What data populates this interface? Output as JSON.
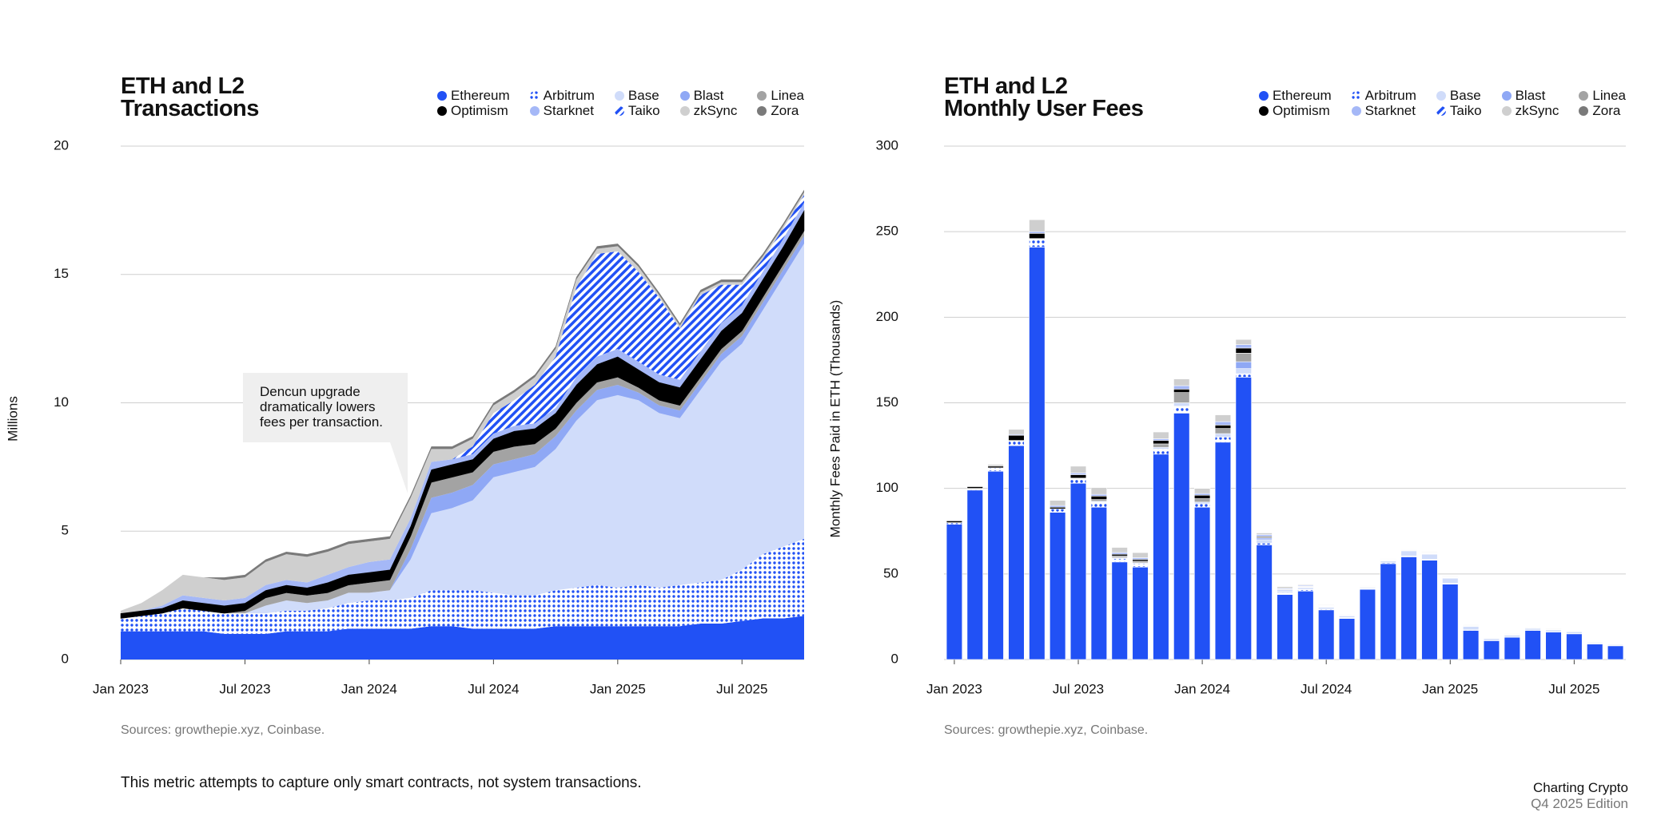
{
  "chart_data": [
    {
      "type": "area",
      "title": "ETH and L2\nTransactions",
      "y_label": "Millions",
      "annotation": "Dencun upgrade dramatically lowers fees per transaction.",
      "source": "Sources: growthepie.xyz, Coinbase.",
      "xlim": [
        "2023-01",
        "2025-10"
      ],
      "x": [
        "2023-01",
        "2023-02",
        "2023-03",
        "2023-04",
        "2023-05",
        "2023-06",
        "2023-07",
        "2023-08",
        "2023-09",
        "2023-10",
        "2023-11",
        "2023-12",
        "2024-01",
        "2024-02",
        "2024-03",
        "2024-04",
        "2024-05",
        "2024-06",
        "2024-07",
        "2024-08",
        "2024-09",
        "2024-10",
        "2024-11",
        "2024-12",
        "2025-01",
        "2025-02",
        "2025-03",
        "2025-04",
        "2025-05",
        "2025-06",
        "2025-07",
        "2025-08",
        "2025-09",
        "2025-10"
      ],
      "xticks": [
        {
          "value": "2023-01",
          "label": "Jan 2023"
        },
        {
          "value": "2023-07",
          "label": "Jul 2023"
        },
        {
          "value": "2024-01",
          "label": "Jan 2024"
        },
        {
          "value": "2024-07",
          "label": "Jul 2024"
        },
        {
          "value": "2025-01",
          "label": "Jan 2025"
        },
        {
          "value": "2025-07",
          "label": "Jul 2025"
        }
      ],
      "ylim": [
        0,
        20
      ],
      "yticks": [
        0,
        5,
        10,
        15,
        20
      ],
      "grid": true,
      "legend": "top-right",
      "series": [
        {
          "name": "Ethereum",
          "color": "#2151f5",
          "values": [
            1.1,
            1.1,
            1.1,
            1.1,
            1.1,
            1.0,
            1.0,
            1.0,
            1.1,
            1.1,
            1.1,
            1.2,
            1.2,
            1.2,
            1.2,
            1.3,
            1.3,
            1.2,
            1.2,
            1.2,
            1.2,
            1.3,
            1.3,
            1.3,
            1.3,
            1.3,
            1.3,
            1.3,
            1.4,
            1.4,
            1.5,
            1.6,
            1.6,
            1.7
          ]
        },
        {
          "name": "Arbitrum",
          "color": "#2151f5",
          "pattern": "dots",
          "values": [
            0.5,
            0.6,
            0.7,
            0.9,
            0.8,
            0.8,
            0.8,
            0.8,
            0.8,
            0.8,
            0.9,
            1.0,
            1.1,
            1.1,
            1.2,
            1.4,
            1.4,
            1.5,
            1.4,
            1.3,
            1.3,
            1.4,
            1.5,
            1.6,
            1.5,
            1.6,
            1.5,
            1.6,
            1.6,
            1.7,
            2.0,
            2.5,
            2.8,
            3.0
          ]
        },
        {
          "name": "Base",
          "color": "#d0dcfa",
          "values": [
            0,
            0,
            0,
            0,
            0,
            0,
            0,
            0.3,
            0.4,
            0.3,
            0.3,
            0.4,
            0.3,
            0.4,
            1.5,
            3.0,
            3.2,
            3.5,
            4.5,
            4.8,
            5.0,
            5.5,
            6.5,
            7.2,
            7.5,
            7.2,
            6.8,
            6.5,
            7.5,
            8.5,
            8.8,
            9.5,
            10.5,
            11.5
          ]
        },
        {
          "name": "Blast",
          "color": "#8fa8f5",
          "values": [
            0,
            0,
            0,
            0,
            0,
            0,
            0,
            0,
            0,
            0,
            0,
            0,
            0,
            0,
            0.4,
            0.6,
            0.6,
            0.6,
            0.5,
            0.5,
            0.5,
            0.5,
            0.4,
            0.4,
            0.4,
            0.3,
            0.3,
            0.3,
            0.3,
            0.3,
            0.3,
            0.3,
            0.3,
            0.3
          ]
        },
        {
          "name": "Linea",
          "color": "#a3a3a3",
          "values": [
            0,
            0,
            0,
            0,
            0,
            0,
            0.1,
            0.3,
            0.3,
            0.3,
            0.3,
            0.3,
            0.4,
            0.4,
            0.5,
            0.6,
            0.6,
            0.5,
            0.5,
            0.5,
            0.4,
            0.3,
            0.3,
            0.3,
            0.3,
            0.2,
            0.2,
            0.2,
            0.2,
            0.2,
            0.2,
            0.2,
            0.2,
            0.2
          ]
        },
        {
          "name": "Optimism",
          "color": "#000000",
          "values": [
            0.2,
            0.2,
            0.2,
            0.3,
            0.3,
            0.3,
            0.3,
            0.3,
            0.3,
            0.3,
            0.4,
            0.4,
            0.4,
            0.4,
            0.4,
            0.5,
            0.5,
            0.5,
            0.5,
            0.6,
            0.6,
            0.6,
            0.7,
            0.7,
            0.8,
            0.7,
            0.7,
            0.7,
            0.7,
            0.7,
            0.7,
            0.7,
            0.7,
            0.8
          ]
        },
        {
          "name": "Starknet",
          "color": "#a5b8f7",
          "values": [
            0,
            0,
            0.1,
            0.2,
            0.2,
            0.2,
            0.2,
            0.2,
            0.2,
            0.2,
            0.3,
            0.3,
            0.4,
            0.4,
            0.3,
            0.3,
            0.2,
            0.2,
            0.2,
            0.2,
            0.2,
            0.2,
            0.3,
            0.3,
            0.3,
            0.3,
            0.3,
            0.3,
            0.3,
            0.3,
            0.3,
            0.3,
            0.3,
            0.3
          ]
        },
        {
          "name": "Taiko",
          "color": "#2151f5",
          "pattern": "stripes",
          "values": [
            0,
            0,
            0,
            0,
            0,
            0,
            0,
            0,
            0,
            0,
            0,
            0,
            0,
            0,
            0,
            0,
            0,
            0.3,
            0.8,
            1.0,
            1.5,
            2.0,
            3.5,
            4.0,
            3.8,
            3.5,
            3.0,
            2.0,
            2.2,
            1.5,
            0.8,
            0.5,
            0.4,
            0.3
          ]
        },
        {
          "name": "zkSync",
          "color": "#cfcfcf",
          "values": [
            0.1,
            0.3,
            0.6,
            0.8,
            0.8,
            0.8,
            0.8,
            0.9,
            1.0,
            1.0,
            0.9,
            0.9,
            0.8,
            0.8,
            0.8,
            0.5,
            0.4,
            0.3,
            0.3,
            0.3,
            0.3,
            0.3,
            0.3,
            0.2,
            0.2,
            0.2,
            0.1,
            0.1,
            0.1,
            0.1,
            0.1,
            0.1,
            0.1,
            0.1
          ]
        },
        {
          "name": "Zora",
          "color": "#7a7a7a",
          "values": [
            0,
            0,
            0,
            0,
            0,
            0.1,
            0.1,
            0.1,
            0.1,
            0.1,
            0.1,
            0.1,
            0.1,
            0.1,
            0.1,
            0.1,
            0.1,
            0.1,
            0.1,
            0.1,
            0.1,
            0.1,
            0.1,
            0.1,
            0.1,
            0.1,
            0.1,
            0.1,
            0.1,
            0.1,
            0.1,
            0.1,
            0.1,
            0.1
          ]
        }
      ]
    },
    {
      "type": "bar",
      "title": "ETH and L2\nMonthly User Fees",
      "y_label": "Monthly Fees Paid in ETH (Thousands)",
      "source": "Sources: growthepie.xyz, Coinbase.",
      "categories": [
        "Jan 2023",
        null,
        null,
        null,
        null,
        null,
        "Jul 2023",
        null,
        null,
        null,
        null,
        null,
        "Jan 2024",
        null,
        null,
        null,
        null,
        null,
        "Jul 2024",
        null,
        null,
        null,
        null,
        null,
        "Jan 2025",
        null,
        null,
        null,
        null,
        null,
        "Jul 2025",
        null,
        null
      ],
      "ylim": [
        0,
        300
      ],
      "yticks": [
        0,
        50,
        100,
        150,
        200,
        250,
        300
      ],
      "grid": true,
      "legend": "top-right",
      "series": [
        {
          "name": "Ethereum",
          "color": "#2151f5",
          "values": [
            79,
            99,
            110,
            125,
            241,
            86,
            103,
            89,
            57,
            54,
            120,
            144,
            89,
            127,
            165,
            67,
            38,
            40,
            29,
            24,
            41,
            56,
            60,
            58,
            44,
            17,
            11,
            13,
            17,
            16,
            15,
            9,
            8
          ]
        },
        {
          "name": "Arbitrum",
          "color": "#2151f5",
          "pattern": "dots",
          "values": [
            1,
            1,
            2,
            3,
            5,
            2,
            3,
            3,
            2,
            2,
            3,
            4,
            2,
            3,
            2,
            1,
            1,
            1,
            0.5,
            0.5,
            0.5,
            0.5,
            0.5,
            0.5,
            0.5,
            0.3,
            0.2,
            0.2,
            0.2,
            0.2,
            0.2,
            0.2,
            0.2
          ]
        },
        {
          "name": "Base",
          "color": "#d0dcfa",
          "values": [
            0,
            0,
            0,
            0,
            0,
            0,
            0,
            0.5,
            0.5,
            0.5,
            1,
            2,
            1,
            2,
            3,
            2,
            1,
            1,
            1,
            1,
            0.5,
            1,
            3,
            3,
            3,
            2,
            1,
            1,
            1,
            1,
            1,
            0.5,
            0.5
          ]
        },
        {
          "name": "Blast",
          "color": "#8fa8f5",
          "values": [
            0,
            0,
            0,
            0,
            0,
            0,
            0,
            0,
            0,
            0,
            0,
            0,
            0,
            0,
            4,
            1,
            0.5,
            0.3,
            0.2,
            0.2,
            0.2,
            0.2,
            0.2,
            0.2,
            0.2,
            0.1,
            0.1,
            0.1,
            0.1,
            0.1,
            0.1,
            0.1,
            0.1
          ]
        },
        {
          "name": "Linea",
          "color": "#a3a3a3",
          "values": [
            0,
            0,
            0,
            0,
            0,
            0,
            0,
            1,
            1,
            1,
            2,
            6,
            2,
            3,
            5,
            0.5,
            0.3,
            0.2,
            0.2,
            0.2,
            0.2,
            0.2,
            0.2,
            0.2,
            0.2,
            0.1,
            0.1,
            0.1,
            0.1,
            0.1,
            0.1,
            0.1,
            0.1
          ]
        },
        {
          "name": "Optimism",
          "color": "#000000",
          "values": [
            1,
            1,
            1,
            3,
            3,
            1,
            2,
            2,
            1,
            1,
            2,
            2,
            2,
            2,
            3,
            0.5,
            0.3,
            0.3,
            0.3,
            0.2,
            0.2,
            0.2,
            0.2,
            0.2,
            0.2,
            0.1,
            0.1,
            0.1,
            0.1,
            0.1,
            0.1,
            0.1,
            0.1
          ]
        },
        {
          "name": "Starknet",
          "color": "#a5b8f7",
          "values": [
            0,
            0,
            0,
            0.5,
            1,
            1,
            1,
            1,
            1,
            1,
            1,
            2,
            1,
            2,
            2,
            1,
            0.5,
            0.5,
            0.3,
            0.2,
            0.2,
            0.2,
            0.2,
            0.2,
            0.2,
            0.1,
            0.1,
            0.1,
            0.1,
            0.1,
            0.1,
            0.1,
            0.1
          ]
        },
        {
          "name": "Taiko",
          "color": "#2151f5",
          "pattern": "stripes",
          "values": [
            0,
            0,
            0,
            0,
            0,
            0,
            0,
            0,
            0,
            0,
            0,
            0,
            0,
            0,
            0,
            0,
            0,
            0.1,
            0.1,
            0.1,
            0.1,
            0.1,
            0.1,
            0.1,
            0.1,
            0.1,
            0.1,
            0.1,
            0.1,
            0.1,
            0.1,
            0.1,
            0.1
          ]
        },
        {
          "name": "zkSync",
          "color": "#cfcfcf",
          "values": [
            0,
            0,
            1,
            3,
            7,
            3,
            4,
            4,
            3,
            3,
            4,
            4,
            3,
            4,
            3,
            1,
            1,
            0.5,
            0.3,
            0.3,
            0.3,
            0.3,
            0.3,
            0.3,
            0.3,
            0.2,
            0.2,
            0.2,
            0.2,
            0.2,
            0.2,
            0.2,
            0.2
          ]
        },
        {
          "name": "Zora",
          "color": "#7a7a7a",
          "values": [
            0,
            0,
            0,
            0,
            0,
            0,
            0.2,
            0.2,
            0.2,
            0.2,
            0.2,
            0.2,
            0.2,
            0.2,
            0.2,
            0.2,
            0.1,
            0.1,
            0.1,
            0.1,
            0.1,
            0.1,
            0.1,
            0.1,
            0.1,
            0.1,
            0.1,
            0.1,
            0.1,
            0.1,
            0.1,
            0.1,
            0.1
          ]
        }
      ]
    }
  ],
  "footnote": "This metric attempts to capture only smart contracts, not system transactions.",
  "brand": {
    "name": "Charting Crypto",
    "edition": "Q4 2025 Edition"
  }
}
